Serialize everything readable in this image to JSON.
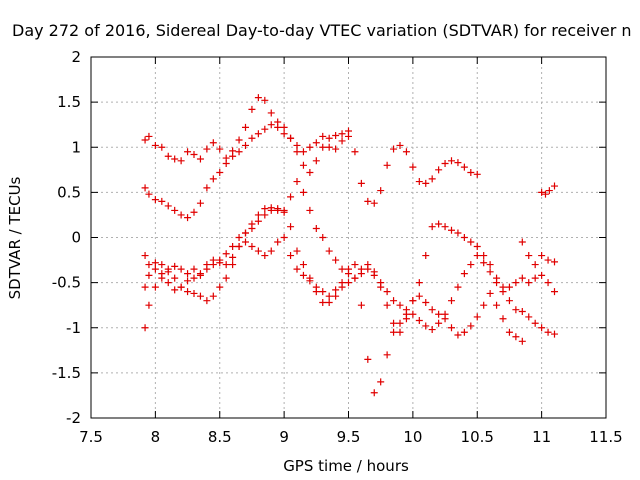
{
  "chart_data": {
    "type": "scatter",
    "title": "Day 272 of 2016, Sidereal Day-to-day VTEC variation (SDTVAR) for receiver n",
    "xlabel": "GPS time / hours",
    "ylabel": "SDTVAR / TECUs",
    "xlim": [
      7.5,
      11.5
    ],
    "ylim": [
      -2,
      2
    ],
    "x_ticks": [
      "7.5",
      "8",
      "8.5",
      "9",
      "9.5",
      "10",
      "10.5",
      "11",
      "11.5"
    ],
    "y_ticks": [
      "2",
      "1.5",
      "1",
      "0.5",
      "0",
      "-0.5",
      "-1",
      "-1.5",
      "-2"
    ],
    "grid": true,
    "marker": "+",
    "color": "#e00000",
    "series": [
      {
        "x": [
          7.92,
          7.95,
          8.0,
          8.05,
          8.1,
          8.15,
          8.2,
          8.25,
          8.3,
          8.35,
          8.4,
          8.45,
          8.5,
          8.55,
          8.6,
          8.65,
          8.7,
          8.75,
          8.8,
          8.85,
          8.9,
          8.95,
          9.0,
          9.05,
          9.1,
          9.15,
          9.2,
          9.25,
          9.3,
          9.35,
          9.4,
          9.45,
          9.5,
          9.55,
          9.6,
          9.65,
          9.7,
          9.75,
          9.8,
          9.85,
          9.9,
          9.95,
          10.0,
          10.05,
          10.1,
          10.15,
          10.2,
          10.25,
          10.3,
          10.35,
          10.4,
          10.45,
          10.5
        ],
        "y": [
          1.08,
          1.12,
          1.02,
          1.0,
          0.9,
          0.87,
          0.85,
          0.95,
          0.92,
          0.87,
          0.98,
          1.05,
          0.98,
          0.88,
          0.96,
          1.08,
          1.22,
          1.42,
          1.55,
          1.52,
          1.38,
          1.22,
          1.15,
          1.1,
          1.02,
          0.95,
          1.0,
          1.05,
          1.12,
          1.0,
          0.98,
          1.07,
          1.18,
          0.95,
          0.6,
          0.4,
          0.38,
          0.52,
          0.8,
          0.98,
          1.02,
          0.95,
          0.78,
          0.62,
          0.6,
          0.65,
          0.75,
          0.82,
          0.85,
          0.83,
          0.78,
          0.72,
          0.7
        ]
      },
      {
        "x": [
          7.92,
          7.95,
          8.0,
          8.05,
          8.1,
          8.15,
          8.2,
          8.25,
          8.3,
          8.35,
          8.4,
          8.45,
          8.5,
          8.55,
          8.6,
          8.65,
          8.7,
          8.75,
          8.8,
          8.85,
          8.9,
          8.95,
          9.0,
          9.05,
          9.1,
          9.15,
          9.2,
          9.25,
          9.3,
          9.35,
          9.4,
          9.45,
          9.5
        ],
        "y": [
          0.55,
          0.48,
          0.42,
          0.4,
          0.35,
          0.3,
          0.25,
          0.22,
          0.28,
          0.38,
          0.55,
          0.65,
          0.72,
          0.82,
          0.9,
          0.95,
          1.02,
          1.1,
          1.15,
          1.2,
          1.25,
          1.28,
          1.22,
          1.1,
          0.95,
          0.8,
          0.72,
          0.85,
          1.0,
          1.1,
          1.13,
          1.15,
          1.12
        ]
      },
      {
        "x": [
          7.92,
          7.95,
          8.0,
          8.05,
          8.1,
          8.15,
          8.2,
          8.25,
          8.3,
          8.35,
          8.4,
          8.45,
          8.5,
          8.55,
          8.6,
          8.65,
          8.7,
          8.75,
          8.8,
          8.85,
          8.9,
          8.95,
          9.0,
          9.05,
          9.1,
          9.15,
          9.2,
          9.25,
          9.3,
          9.35,
          9.4,
          9.45,
          9.5,
          9.55,
          9.6,
          9.65,
          9.7,
          9.75,
          9.8,
          9.85,
          9.9,
          9.95,
          10.0,
          10.05,
          10.1,
          10.15,
          10.2,
          10.25,
          10.3,
          10.35,
          10.4,
          10.45,
          10.5,
          10.55,
          10.6,
          10.65,
          10.7,
          10.75,
          10.8,
          10.85
        ],
        "y": [
          -1.0,
          -0.75,
          -0.55,
          -0.4,
          -0.35,
          -0.45,
          -0.55,
          -0.6,
          -0.62,
          -0.65,
          -0.7,
          -0.65,
          -0.55,
          -0.45,
          -0.3,
          -0.1,
          0.05,
          0.15,
          0.25,
          0.32,
          0.33,
          0.3,
          0.28,
          0.45,
          0.62,
          0.5,
          0.3,
          0.1,
          0.0,
          -0.15,
          -0.25,
          -0.35,
          -0.4,
          -0.45,
          -0.35,
          -0.3,
          -0.38,
          -0.55,
          -0.75,
          -0.95,
          -1.05,
          -0.9,
          -0.7,
          -0.65,
          -0.72,
          -0.8,
          -0.85,
          -0.9,
          -1.0,
          -1.08,
          -1.05,
          -0.98,
          -0.88,
          -0.75,
          -0.62,
          -0.75,
          -0.9,
          -1.05,
          -1.1,
          -1.15
        ]
      },
      {
        "x": [
          7.92,
          7.95,
          8.0,
          8.05,
          8.1,
          8.15,
          8.2,
          8.25,
          8.3,
          8.35,
          8.4,
          8.45,
          8.5,
          8.55,
          8.6,
          8.65,
          8.7,
          8.75,
          8.8,
          8.85,
          8.9,
          8.95,
          9.0,
          9.05,
          9.1,
          9.15,
          9.2,
          9.25,
          9.3,
          9.35,
          9.4,
          9.45,
          9.5,
          9.55,
          9.6,
          9.65,
          9.7,
          9.75,
          9.8,
          9.85,
          9.9,
          9.95,
          10.0,
          10.05,
          10.1,
          10.15,
          10.2,
          10.25,
          10.3,
          10.35,
          10.4,
          10.45,
          10.5,
          10.55,
          10.6,
          10.65,
          10.7,
          10.75,
          10.8
        ],
        "y": [
          -0.55,
          -0.42,
          -0.28,
          -0.3,
          -0.38,
          -0.32,
          -0.35,
          -0.4,
          -0.35,
          -0.4,
          -0.3,
          -0.25,
          -0.28,
          -0.3,
          -0.22,
          -0.1,
          -0.05,
          -0.1,
          -0.15,
          -0.2,
          -0.15,
          -0.05,
          0.0,
          -0.2,
          -0.35,
          -0.42,
          -0.48,
          -0.55,
          -0.6,
          -0.72,
          -0.65,
          -0.5,
          -0.35,
          -0.3,
          -0.75,
          -1.35,
          -1.72,
          -1.6,
          -1.3,
          -1.05,
          -0.95,
          -0.85,
          -0.7,
          -0.5,
          -0.2,
          0.12,
          0.15,
          0.12,
          0.08,
          0.05,
          0.0,
          -0.05,
          -0.1,
          -0.2,
          -0.3,
          -0.45,
          -0.55,
          -0.55,
          -0.5
        ]
      },
      {
        "x": [
          7.92,
          7.95,
          8.0,
          8.05,
          8.1,
          8.15,
          8.2,
          8.25,
          8.3,
          8.35,
          8.4,
          8.45,
          8.5,
          8.55,
          8.6,
          8.65,
          8.7,
          8.75,
          8.8,
          8.85,
          8.9,
          8.95,
          9.0,
          9.05,
          9.1,
          9.15,
          9.2,
          9.25,
          9.3,
          9.35,
          9.4,
          9.45,
          9.5,
          9.55,
          9.6,
          9.65,
          9.7,
          9.75,
          9.8,
          9.85,
          9.9,
          9.95,
          10.0,
          10.05,
          10.1,
          10.15,
          10.2,
          10.25,
          10.3,
          10.35,
          10.4,
          10.45,
          10.5,
          10.55,
          10.6,
          10.65,
          10.7,
          10.75,
          10.8,
          10.85,
          10.9,
          10.95,
          11.0,
          11.05,
          11.1
        ],
        "y": [
          -0.2,
          -0.3,
          -0.35,
          -0.45,
          -0.5,
          -0.58,
          -0.55,
          -0.48,
          -0.45,
          -0.42,
          -0.35,
          -0.3,
          -0.25,
          -0.18,
          -0.1,
          0.0,
          0.05,
          0.1,
          0.18,
          0.25,
          0.3,
          0.32,
          0.3,
          0.12,
          -0.15,
          -0.3,
          -0.45,
          -0.6,
          -0.72,
          -0.65,
          -0.58,
          -0.55,
          -0.5,
          -0.45,
          -0.4,
          -0.35,
          -0.42,
          -0.5,
          -0.6,
          -0.7,
          -0.75,
          -0.8,
          -0.85,
          -0.92,
          -0.98,
          -1.02,
          -0.95,
          -0.85,
          -0.7,
          -0.55,
          -0.4,
          -0.3,
          -0.2,
          -0.28,
          -0.38,
          -0.5,
          -0.6,
          -0.7,
          -0.8,
          -0.82,
          -0.88,
          -0.95,
          -1.0,
          -1.05,
          -1.07
        ]
      },
      {
        "x": [
          10.85,
          10.9,
          10.95,
          11.0,
          11.05,
          11.1
        ],
        "y": [
          -0.05,
          -0.2,
          -0.3,
          -0.2,
          -0.25,
          -0.27
        ]
      },
      {
        "x": [
          10.85,
          10.9,
          10.95,
          11.0,
          11.05,
          11.1
        ],
        "y": [
          -0.45,
          -0.5,
          -0.45,
          -0.42,
          -0.5,
          -0.6
        ]
      },
      {
        "x": [
          11.0,
          11.03,
          11.06,
          11.1
        ],
        "y": [
          0.5,
          0.48,
          0.52,
          0.57
        ]
      }
    ]
  }
}
